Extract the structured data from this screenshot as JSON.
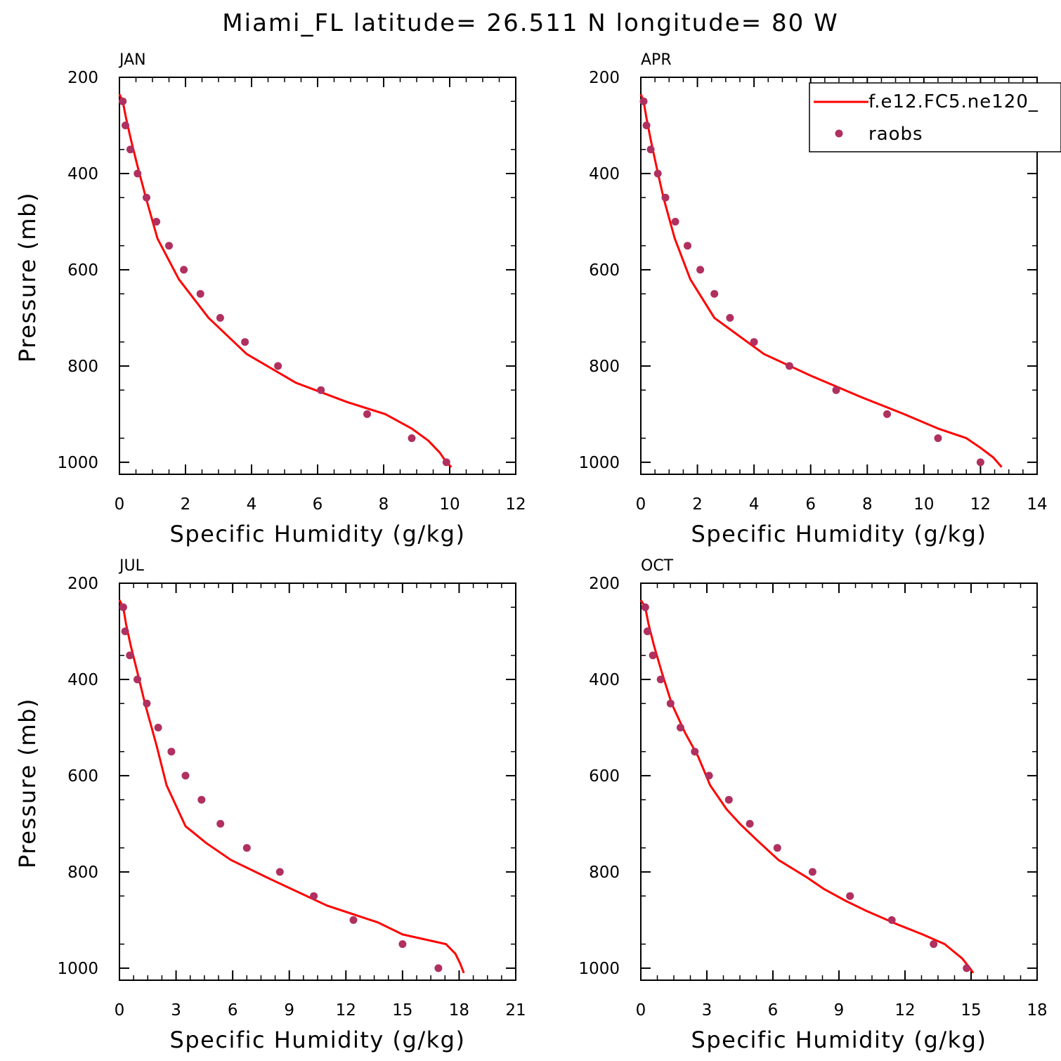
{
  "figure": {
    "title": "Miami_FL  latitude= 26.511 N longitude= 80 W"
  },
  "legend": {
    "model_label": "f.e12.FC5.ne120_",
    "obs_label": "raobs"
  },
  "chart_data": [
    {
      "type": "line",
      "panel": "JAN",
      "xlabel": "Specific Humidity (g/kg)",
      "ylabel": "Pressure (mb)",
      "xlim": [
        0,
        12
      ],
      "ylim": [
        200,
        1025
      ],
      "y_inverted": true,
      "x_ticks": [
        0,
        2,
        4,
        6,
        8,
        10,
        12
      ],
      "y_ticks": [
        200,
        400,
        600,
        800,
        1000
      ],
      "series": [
        {
          "name": "f.e12.FC5.ne120_",
          "style": "line",
          "color": "#ff0000",
          "points": [
            [
              0.0,
              235
            ],
            [
              0.1,
              250
            ],
            [
              0.2,
              285
            ],
            [
              0.35,
              330
            ],
            [
              0.55,
              385
            ],
            [
              0.8,
              450
            ],
            [
              1.15,
              535
            ],
            [
              1.8,
              620
            ],
            [
              2.7,
              700
            ],
            [
              3.85,
              775
            ],
            [
              5.35,
              835
            ],
            [
              6.9,
              875
            ],
            [
              8.05,
              900
            ],
            [
              8.85,
              930
            ],
            [
              9.35,
              955
            ],
            [
              9.7,
              980
            ],
            [
              9.9,
              1000
            ],
            [
              10.05,
              1010
            ]
          ]
        },
        {
          "name": "raobs",
          "style": "scatter",
          "color": "#b03060",
          "points": [
            [
              0.1,
              250
            ],
            [
              0.18,
              300
            ],
            [
              0.33,
              350
            ],
            [
              0.55,
              400
            ],
            [
              0.82,
              450
            ],
            [
              1.12,
              500
            ],
            [
              1.5,
              550
            ],
            [
              1.95,
              600
            ],
            [
              2.45,
              650
            ],
            [
              3.05,
              700
            ],
            [
              3.8,
              750
            ],
            [
              4.8,
              800
            ],
            [
              6.1,
              850
            ],
            [
              7.5,
              900
            ],
            [
              8.85,
              950
            ],
            [
              9.9,
              1000
            ]
          ]
        }
      ]
    },
    {
      "type": "line",
      "panel": "APR",
      "xlabel": "Specific Humidity (g/kg)",
      "ylabel": "",
      "xlim": [
        0,
        14
      ],
      "ylim": [
        200,
        1025
      ],
      "y_inverted": true,
      "x_ticks": [
        0,
        2,
        4,
        6,
        8,
        10,
        12,
        14
      ],
      "y_ticks": [
        200,
        400,
        600,
        800,
        1000
      ],
      "series": [
        {
          "name": "f.e12.FC5.ne120_",
          "style": "line",
          "color": "#ff0000",
          "points": [
            [
              0.0,
              235
            ],
            [
              0.1,
              250
            ],
            [
              0.2,
              285
            ],
            [
              0.35,
              330
            ],
            [
              0.55,
              385
            ],
            [
              0.8,
              450
            ],
            [
              1.2,
              535
            ],
            [
              1.75,
              620
            ],
            [
              2.6,
              700
            ],
            [
              3.3,
              730
            ],
            [
              4.35,
              775
            ],
            [
              6.0,
              820
            ],
            [
              7.8,
              865
            ],
            [
              9.3,
              900
            ],
            [
              10.5,
              930
            ],
            [
              11.5,
              950
            ],
            [
              12.0,
              970
            ],
            [
              12.45,
              990
            ],
            [
              12.75,
              1010
            ]
          ]
        },
        {
          "name": "raobs",
          "style": "scatter",
          "color": "#b03060",
          "points": [
            [
              0.1,
              250
            ],
            [
              0.2,
              300
            ],
            [
              0.35,
              350
            ],
            [
              0.6,
              400
            ],
            [
              0.87,
              450
            ],
            [
              1.22,
              500
            ],
            [
              1.65,
              550
            ],
            [
              2.1,
              600
            ],
            [
              2.6,
              650
            ],
            [
              3.15,
              700
            ],
            [
              4.0,
              750
            ],
            [
              5.25,
              800
            ],
            [
              6.9,
              850
            ],
            [
              8.7,
              900
            ],
            [
              10.5,
              950
            ],
            [
              12.0,
              1000
            ]
          ]
        }
      ]
    },
    {
      "type": "line",
      "panel": "JUL",
      "xlabel": "Specific Humidity (g/kg)",
      "ylabel": "Pressure (mb)",
      "xlim": [
        0,
        21
      ],
      "ylim": [
        200,
        1025
      ],
      "y_inverted": true,
      "x_ticks": [
        0,
        3,
        6,
        9,
        12,
        15,
        18,
        21
      ],
      "y_ticks": [
        200,
        400,
        600,
        800,
        1000
      ],
      "series": [
        {
          "name": "f.e12.FC5.ne120_",
          "style": "line",
          "color": "#ff0000",
          "points": [
            [
              0.0,
              235
            ],
            [
              0.2,
              250
            ],
            [
              0.35,
              285
            ],
            [
              0.6,
              330
            ],
            [
              0.95,
              385
            ],
            [
              1.35,
              450
            ],
            [
              1.95,
              535
            ],
            [
              2.5,
              620
            ],
            [
              3.5,
              705
            ],
            [
              4.6,
              740
            ],
            [
              5.9,
              775
            ],
            [
              8.0,
              815
            ],
            [
              11.0,
              870
            ],
            [
              13.7,
              905
            ],
            [
              15.0,
              930
            ],
            [
              17.3,
              950
            ],
            [
              17.8,
              970
            ],
            [
              18.05,
              990
            ],
            [
              18.25,
              1010
            ]
          ]
        },
        {
          "name": "raobs",
          "style": "scatter",
          "color": "#b03060",
          "points": [
            [
              0.2,
              250
            ],
            [
              0.3,
              300
            ],
            [
              0.55,
              350
            ],
            [
              0.95,
              400
            ],
            [
              1.45,
              450
            ],
            [
              2.05,
              500
            ],
            [
              2.75,
              550
            ],
            [
              3.5,
              600
            ],
            [
              4.35,
              650
            ],
            [
              5.35,
              700
            ],
            [
              6.75,
              750
            ],
            [
              8.5,
              800
            ],
            [
              10.3,
              850
            ],
            [
              12.4,
              900
            ],
            [
              15.0,
              950
            ],
            [
              16.9,
              1000
            ]
          ]
        }
      ]
    },
    {
      "type": "line",
      "panel": "OCT",
      "xlabel": "Specific Humidity (g/kg)",
      "ylabel": "",
      "xlim": [
        0,
        18
      ],
      "ylim": [
        200,
        1025
      ],
      "y_inverted": true,
      "x_ticks": [
        0,
        3,
        6,
        9,
        12,
        15,
        18
      ],
      "y_ticks": [
        200,
        400,
        600,
        800,
        1000
      ],
      "series": [
        {
          "name": "f.e12.FC5.ne120_",
          "style": "line",
          "color": "#ff0000",
          "points": [
            [
              0.0,
              235
            ],
            [
              0.2,
              250
            ],
            [
              0.35,
              285
            ],
            [
              0.6,
              330
            ],
            [
              0.95,
              385
            ],
            [
              1.4,
              450
            ],
            [
              2.0,
              510
            ],
            [
              2.6,
              560
            ],
            [
              3.15,
              620
            ],
            [
              3.9,
              670
            ],
            [
              4.5,
              700
            ],
            [
              5.3,
              735
            ],
            [
              6.25,
              775
            ],
            [
              7.5,
              810
            ],
            [
              8.3,
              835
            ],
            [
              9.3,
              860
            ],
            [
              10.2,
              880
            ],
            [
              11.7,
              910
            ],
            [
              12.8,
              930
            ],
            [
              13.8,
              950
            ],
            [
              14.2,
              965
            ],
            [
              14.6,
              980
            ],
            [
              14.95,
              1000
            ],
            [
              15.1,
              1010
            ]
          ]
        },
        {
          "name": "raobs",
          "style": "scatter",
          "color": "#b03060",
          "points": [
            [
              0.2,
              250
            ],
            [
              0.3,
              300
            ],
            [
              0.55,
              350
            ],
            [
              0.9,
              400
            ],
            [
              1.35,
              450
            ],
            [
              1.8,
              500
            ],
            [
              2.45,
              550
            ],
            [
              3.1,
              600
            ],
            [
              4.0,
              650
            ],
            [
              4.95,
              700
            ],
            [
              6.2,
              750
            ],
            [
              7.8,
              800
            ],
            [
              9.5,
              850
            ],
            [
              11.4,
              900
            ],
            [
              13.3,
              950
            ],
            [
              14.8,
              1000
            ]
          ]
        }
      ]
    }
  ]
}
